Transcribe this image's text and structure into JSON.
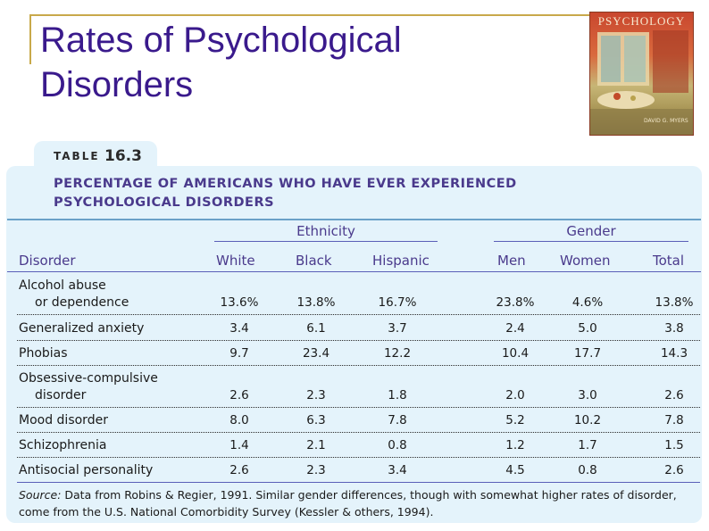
{
  "slide": {
    "title": "Rates of Psychological Disorders"
  },
  "cover": {
    "title": "PSYCHOLOGY",
    "author": "DAVID G. MYERS"
  },
  "table": {
    "tab_word": "TABLE",
    "tab_number": "16.3",
    "heading_line1": "PERCENTAGE OF AMERICANS WHO HAVE EVER EXPERIENCED",
    "heading_line2": "PSYCHOLOGICAL DISORDERS",
    "groups": {
      "ethnicity": "Ethnicity",
      "gender": "Gender"
    },
    "columns": [
      "Disorder",
      "White",
      "Black",
      "Hispanic",
      "Men",
      "Women",
      "Total"
    ],
    "rows": [
      {
        "label1": "Alcohol abuse",
        "label2": "or dependence",
        "values": [
          "13.6%",
          "13.8%",
          "16.7%",
          "23.8%",
          "4.6%",
          "13.8%"
        ]
      },
      {
        "label1": "Generalized anxiety",
        "label2": "",
        "values": [
          "3.4",
          "6.1",
          "3.7",
          "2.4",
          "5.0",
          "3.8"
        ]
      },
      {
        "label1": "Phobias",
        "label2": "",
        "values": [
          "9.7",
          "23.4",
          "12.2",
          "10.4",
          "17.7",
          "14.3"
        ]
      },
      {
        "label1": "Obsessive-compulsive",
        "label2": "disorder",
        "values": [
          "2.6",
          "2.3",
          "1.8",
          "2.0",
          "3.0",
          "2.6"
        ]
      },
      {
        "label1": "Mood disorder",
        "label2": "",
        "values": [
          "8.0",
          "6.3",
          "7.8",
          "5.2",
          "10.2",
          "7.8"
        ]
      },
      {
        "label1": "Schizophrenia",
        "label2": "",
        "values": [
          "1.4",
          "2.1",
          "0.8",
          "1.2",
          "1.7",
          "1.5"
        ]
      },
      {
        "label1": "Antisocial personality",
        "label2": "",
        "values": [
          "2.6",
          "2.3",
          "3.4",
          "4.5",
          "0.8",
          "2.6"
        ]
      }
    ],
    "source_label": "Source:",
    "source_line1": " Data from Robins & Regier, 1991. Similar gender differences, though with somewhat higher rates of disorder,",
    "source_line2": "come from the U.S. National Comorbidity Survey (Kessler & others, 1994)."
  }
}
